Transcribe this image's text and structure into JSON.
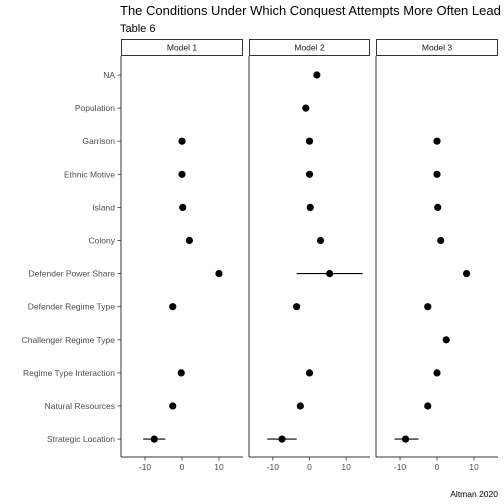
{
  "chart_data": {
    "type": "scatter",
    "title": "The Conditions Under Which Conquest Attempts More Often Lead to Conquest",
    "subtitle": "Table 6",
    "caption": "Altman 2020",
    "xlim": [
      -16.5,
      16.5
    ],
    "x_ticks": [
      -10,
      0,
      10
    ],
    "x_tick_labels": [
      "-10",
      "0",
      "10"
    ],
    "categories": [
      "NA",
      "Population",
      "Garrison",
      "Ethnic Motive",
      "Island",
      "Colony",
      "Defender Power Share",
      "Defender Regime Type",
      "Challenger Regime Type",
      "Regime Type Interaction",
      "Natural Resources",
      "Strategic Location"
    ],
    "panels": [
      {
        "name": "Model 1",
        "points": [
          {
            "category": "Garrison",
            "estimate": 0,
            "low": -0.4,
            "high": 0.4
          },
          {
            "category": "Ethnic Motive",
            "estimate": 0,
            "low": -0.4,
            "high": 0.4
          },
          {
            "category": "Island",
            "estimate": 0.2,
            "low": -0.2,
            "high": 0.6
          },
          {
            "category": "Colony",
            "estimate": 2,
            "low": 1.6,
            "high": 2.4
          },
          {
            "category": "Defender Power Share",
            "estimate": 10,
            "low": 9.6,
            "high": 10.4
          },
          {
            "category": "Defender Regime Type",
            "estimate": -2.5,
            "low": -2.9,
            "high": -2.1
          },
          {
            "category": "Regime Type Interaction",
            "estimate": -0.2,
            "low": -0.6,
            "high": 0.2
          },
          {
            "category": "Natural Resources",
            "estimate": -2.5,
            "low": -3.2,
            "high": -1.8
          },
          {
            "category": "Strategic Location",
            "estimate": -7.5,
            "low": -10.5,
            "high": -4.5
          }
        ]
      },
      {
        "name": "Model 2",
        "points": [
          {
            "category": "NA",
            "estimate": 2,
            "low": 1.6,
            "high": 2.4
          },
          {
            "category": "Population",
            "estimate": -1,
            "low": -1.4,
            "high": -0.6
          },
          {
            "category": "Garrison",
            "estimate": 0,
            "low": -0.4,
            "high": 0.4
          },
          {
            "category": "Ethnic Motive",
            "estimate": 0,
            "low": -0.4,
            "high": 0.4
          },
          {
            "category": "Island",
            "estimate": 0.2,
            "low": -0.2,
            "high": 0.6
          },
          {
            "category": "Colony",
            "estimate": 3,
            "low": 2.6,
            "high": 3.4
          },
          {
            "category": "Defender Power Share",
            "estimate": 5.5,
            "low": -3.5,
            "high": 14.5
          },
          {
            "category": "Defender Regime Type",
            "estimate": -3.5,
            "low": -3.9,
            "high": -3.1
          },
          {
            "category": "Regime Type Interaction",
            "estimate": 0,
            "low": -0.4,
            "high": 0.4
          },
          {
            "category": "Natural Resources",
            "estimate": -2.5,
            "low": -3.2,
            "high": -1.8
          },
          {
            "category": "Strategic Location",
            "estimate": -7.5,
            "low": -11.5,
            "high": -3.5
          }
        ]
      },
      {
        "name": "Model 3",
        "points": [
          {
            "category": "Garrison",
            "estimate": 0,
            "low": -0.4,
            "high": 0.4
          },
          {
            "category": "Ethnic Motive",
            "estimate": 0,
            "low": -0.4,
            "high": 0.4
          },
          {
            "category": "Island",
            "estimate": 0.2,
            "low": -0.2,
            "high": 0.6
          },
          {
            "category": "Colony",
            "estimate": 1,
            "low": 0.6,
            "high": 1.4
          },
          {
            "category": "Defender Power Share",
            "estimate": 8,
            "low": 7.6,
            "high": 8.4
          },
          {
            "category": "Defender Regime Type",
            "estimate": -2.5,
            "low": -2.9,
            "high": -2.1
          },
          {
            "category": "Challenger Regime Type",
            "estimate": 2.5,
            "low": 2.1,
            "high": 2.9
          },
          {
            "category": "Regime Type Interaction",
            "estimate": 0,
            "low": -0.4,
            "high": 0.4
          },
          {
            "category": "Natural Resources",
            "estimate": -2.5,
            "low": -2.9,
            "high": -2.1
          },
          {
            "category": "Strategic Location",
            "estimate": -8.5,
            "low": -11.5,
            "high": -5
          }
        ]
      }
    ],
    "grid": false,
    "legend": "none",
    "colors": {
      "point": "#000000",
      "strip_fill": "#ffffff",
      "strip_border": "#333333",
      "axis": "#333333"
    }
  }
}
